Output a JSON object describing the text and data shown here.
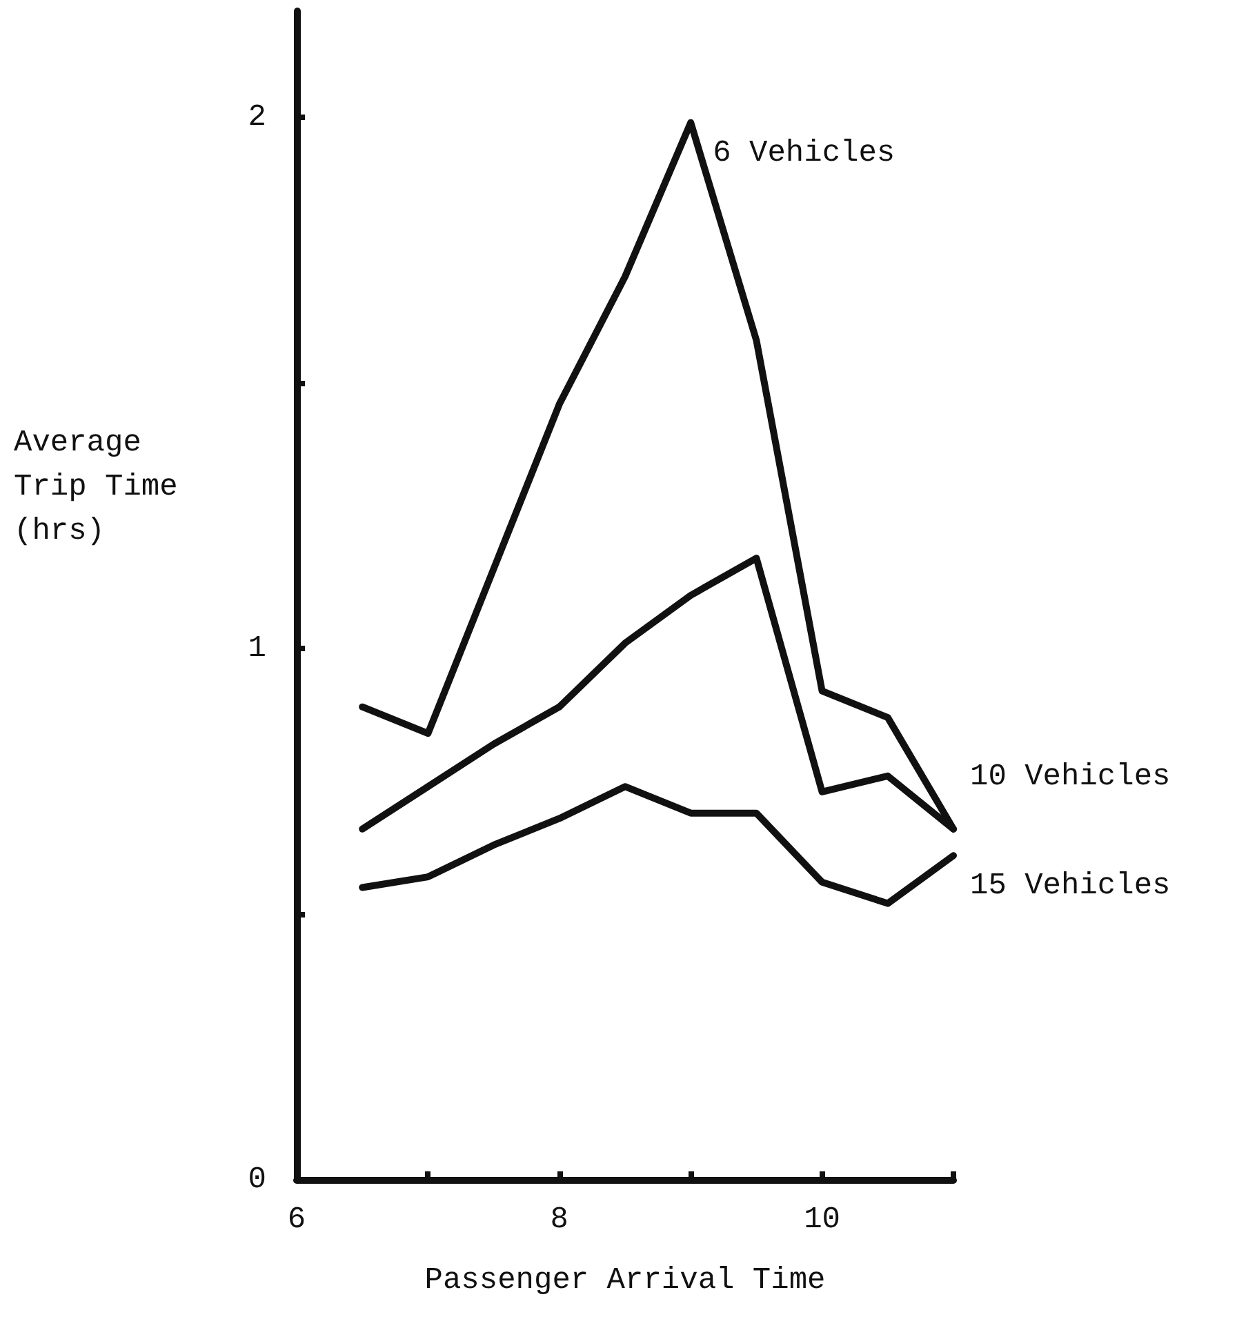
{
  "chart_data": {
    "type": "line",
    "xlabel": "Passenger Arrival Time",
    "ylabel": "Average Trip Time (hrs)",
    "x": [
      6.5,
      7,
      7.5,
      8,
      8.5,
      9,
      9.5,
      10,
      10.5,
      11
    ],
    "series": [
      {
        "name": "6 Vehicles",
        "color": "#111111",
        "values": [
          0.89,
          0.84,
          1.15,
          1.46,
          1.7,
          1.99,
          1.58,
          0.92,
          0.87,
          0.66
        ]
      },
      {
        "name": "10 Vehicles",
        "color": "#111111",
        "values": [
          0.66,
          0.74,
          0.82,
          0.89,
          1.01,
          1.1,
          1.17,
          0.73,
          0.76,
          0.66
        ]
      },
      {
        "name": "15 Vehicles",
        "color": "#111111",
        "values": [
          0.55,
          0.57,
          0.63,
          0.68,
          0.74,
          0.69,
          0.69,
          0.56,
          0.52,
          0.61
        ]
      }
    ],
    "xlim": [
      6,
      11
    ],
    "xticks": [
      6,
      {
        "value": 7,
        "label": null
      },
      8,
      {
        "value": 9,
        "label": null
      },
      10,
      {
        "value": 11,
        "label": null
      }
    ],
    "ylim": [
      0,
      2.2
    ],
    "yticks": [
      0,
      {
        "value": 0.5,
        "label": null
      },
      1,
      {
        "value": 1.5,
        "label": null
      },
      2
    ],
    "grid": false,
    "legend": false,
    "marker": "none",
    "line_style": "solid"
  }
}
